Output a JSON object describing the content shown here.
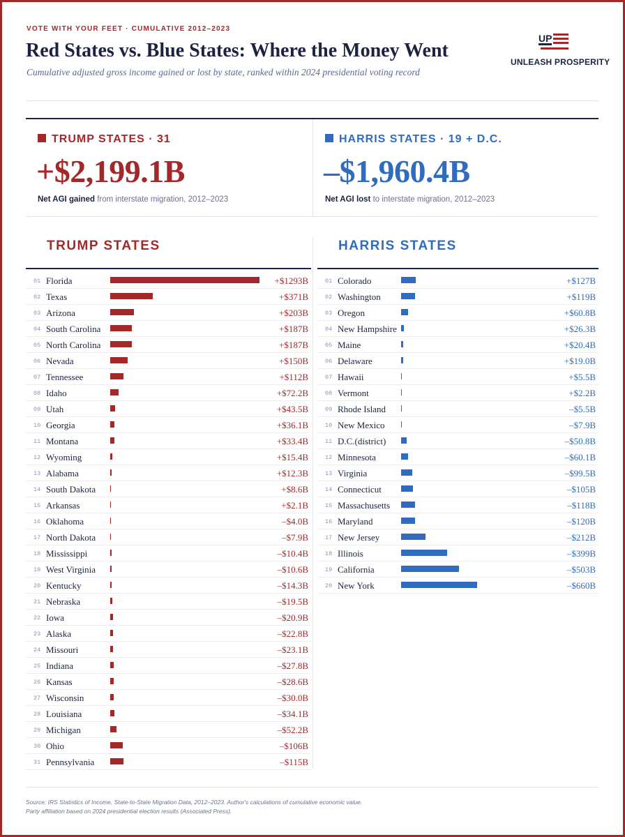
{
  "header": {
    "eyebrow": "VOTE WITH YOUR FEET · CUMULATIVE 2012–2023",
    "title": "Red States vs. Blue States: Where the Money Went",
    "subtitle": "Cumulative adjusted gross income gained or lost by state, ranked within 2024 presidential voting record",
    "logo_text": "UNLEASH PROSPERITY",
    "logo_mark": "UP"
  },
  "summary": {
    "trump": {
      "label": "TRUMP STATES · 31",
      "total": "+$2,199.1B",
      "note_bold": "Net AGI gained",
      "note_rest": "from interstate migration, 2012–2023"
    },
    "harris": {
      "label": "HARRIS STATES · 19 + D.C.",
      "total": "–$1,960.4B",
      "note_bold": "Net AGI lost",
      "note_rest": "to interstate migration, 2012–2023"
    }
  },
  "columns": {
    "trump_title": "TRUMP STATES",
    "harris_title": "HARRIS STATES"
  },
  "colors": {
    "red": "#a3282a",
    "blue": "#2f6bbf",
    "navy": "#1b2340"
  },
  "chart_data": [
    {
      "type": "bar",
      "series_name": "TRUMP STATES",
      "unit": "B",
      "categories": [
        "Florida",
        "Texas",
        "Arizona",
        "South Carolina",
        "North Carolina",
        "Nevada",
        "Tennessee",
        "Idaho",
        "Utah",
        "Georgia",
        "Montana",
        "Wyoming",
        "Alabama",
        "South Dakota",
        "Arkansas",
        "Oklahoma",
        "North Dakota",
        "Mississippi",
        "West Virginia",
        "Kentucky",
        "Nebraska",
        "Iowa",
        "Alaska",
        "Missouri",
        "Indiana",
        "Kansas",
        "Wisconsin",
        "Louisiana",
        "Michigan",
        "Ohio",
        "Pennsylvania"
      ],
      "ranks": [
        "01",
        "02",
        "03",
        "04",
        "05",
        "06",
        "07",
        "08",
        "09",
        "10",
        "11",
        "12",
        "13",
        "14",
        "15",
        "16",
        "17",
        "18",
        "19",
        "20",
        "21",
        "22",
        "23",
        "24",
        "25",
        "26",
        "27",
        "28",
        "29",
        "30",
        "31"
      ],
      "values": [
        1293,
        371,
        203,
        187,
        187,
        150,
        112,
        72.2,
        43.5,
        36.1,
        33.4,
        15.4,
        12.3,
        8.6,
        2.1,
        -4.0,
        -7.9,
        -10.4,
        -10.6,
        -14.3,
        -19.5,
        -20.9,
        -22.8,
        -23.1,
        -27.8,
        -28.6,
        -30.0,
        -34.1,
        -52.2,
        -106,
        -115
      ],
      "labels": [
        "+$1293B",
        "+$371B",
        "+$203B",
        "+$187B",
        "+$187B",
        "+$150B",
        "+$112B",
        "+$72.2B",
        "+$43.5B",
        "+$36.1B",
        "+$33.4B",
        "+$15.4B",
        "+$12.3B",
        "+$8.6B",
        "+$2.1B",
        "–$4.0B",
        "–$7.9B",
        "–$10.4B",
        "–$10.6B",
        "–$14.3B",
        "–$19.5B",
        "–$20.9B",
        "–$22.8B",
        "–$23.1B",
        "–$27.8B",
        "–$28.6B",
        "–$30.0B",
        "–$34.1B",
        "–$52.2B",
        "–$106B",
        "–$115B"
      ]
    },
    {
      "type": "bar",
      "series_name": "HARRIS STATES",
      "unit": "B",
      "categories": [
        "Colorado",
        "Washington",
        "Oregon",
        "New Hampshire",
        "Maine",
        "Delaware",
        "Hawaii",
        "Vermont",
        "Rhode Island",
        "New Mexico",
        "D.C.(district)",
        "Minnesota",
        "Virginia",
        "Connecticut",
        "Massachusetts",
        "Maryland",
        "New Jersey",
        "Illinois",
        "California",
        "New York"
      ],
      "ranks": [
        "01",
        "02",
        "03",
        "04",
        "05",
        "06",
        "07",
        "08",
        "09",
        "10",
        "11",
        "12",
        "13",
        "14",
        "15",
        "16",
        "17",
        "18",
        "19",
        "20"
      ],
      "values": [
        127,
        119,
        60.8,
        26.3,
        20.4,
        19.0,
        5.5,
        2.2,
        -5.5,
        -7.9,
        -50.8,
        -60.1,
        -99.5,
        -105,
        -118,
        -120,
        -212,
        -399,
        -503,
        -660
      ],
      "labels": [
        "+$127B",
        "+$119B",
        "+$60.8B",
        "+$26.3B",
        "+$20.4B",
        "+$19.0B",
        "+$5.5B",
        "+$2.2B",
        "–$5.5B",
        "–$7.9B",
        "–$50.8B",
        "–$60.1B",
        "–$99.5B",
        "–$105B",
        "–$118B",
        "–$120B",
        "–$212B",
        "–$399B",
        "–$503B",
        "–$660B"
      ]
    }
  ],
  "footer": {
    "line1": "Source: IRS Statistics of Income, State-to-State Migration Data, 2012–2023. Author's calculations of cumulative economic value.",
    "line2": "Party affiliation based on 2024 presidential election results (Associated Press)."
  }
}
